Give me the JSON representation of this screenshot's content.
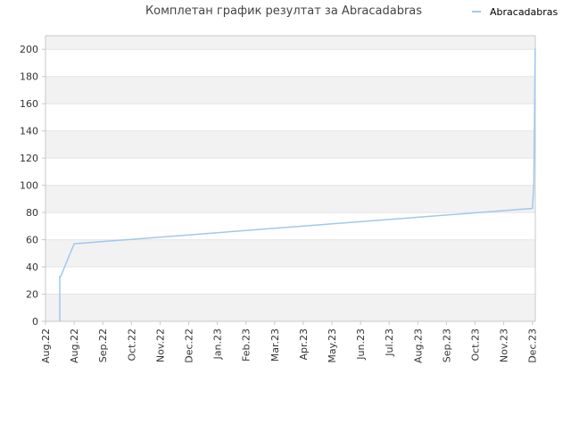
{
  "chart_data": {
    "type": "line",
    "title": "Комплетан график резултат за Abracadabras",
    "legend_position": "top-right",
    "grid": true,
    "xlabel": "",
    "ylabel": "",
    "ylim": [
      0,
      210
    ],
    "y_ticks": [
      0,
      20,
      40,
      60,
      80,
      100,
      120,
      140,
      160,
      180,
      200
    ],
    "x_tick_labels": [
      "Aug.22",
      "Aug.22",
      "Sep.22",
      "Oct.22",
      "Nov.22",
      "Dec.22",
      "Jan.23",
      "Feb.23",
      "Mar.23",
      "Apr.23",
      "May.23",
      "Jun.23",
      "Jul.23",
      "Aug.23",
      "Sep.23",
      "Oct.23",
      "Nov.23",
      "Dec.23"
    ],
    "series": [
      {
        "name": "Abracadabras",
        "color": "#9ec9ef",
        "x_index": [
          0.5,
          0.5,
          0.53,
          1.0,
          17.0,
          17.05,
          17.1
        ],
        "values": [
          0,
          33,
          33,
          57,
          83,
          100,
          201
        ]
      }
    ]
  },
  "colors": {
    "band_light": "#f2f2f2",
    "band_white": "#ffffff",
    "grid": "#e4e4e4",
    "axis": "#c8c8c8",
    "text": "#333333",
    "title": "#444444"
  }
}
